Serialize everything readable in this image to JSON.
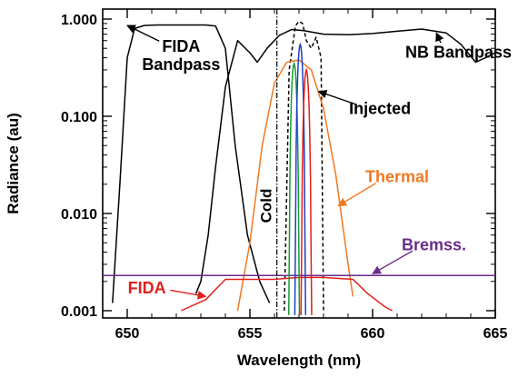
{
  "chart_data": {
    "type": "line",
    "xlabel": "Wavelength (nm)",
    "ylabel": "Radiance (au)",
    "xlim": [
      649,
      665
    ],
    "ylim": [
      0.001,
      1.0
    ],
    "yscale": "log",
    "x_ticks": [
      {
        "value": 650,
        "label": "650"
      },
      {
        "value": 655,
        "label": "655"
      },
      {
        "value": 660,
        "label": "660"
      },
      {
        "value": 665,
        "label": "665"
      }
    ],
    "y_ticks": [
      {
        "value": 0.001,
        "label": "0.001"
      },
      {
        "value": 0.01,
        "label": "0.010"
      },
      {
        "value": 0.1,
        "label": "0.100"
      },
      {
        "value": 1.0,
        "label": "1.000"
      }
    ],
    "series": [
      {
        "name": "FIDA Bandpass",
        "color": "#000000",
        "style": "solid",
        "x": [
          649.4,
          649.7,
          650.0,
          650.3,
          650.7,
          651.2,
          651.8,
          652.5,
          653.2,
          653.6,
          654.0,
          654.4,
          654.9,
          655.4,
          655.8
        ],
        "y": [
          0.0012,
          0.02,
          0.4,
          0.8,
          0.86,
          0.87,
          0.87,
          0.87,
          0.87,
          0.85,
          0.5,
          0.05,
          0.006,
          0.002,
          0.0012
        ]
      },
      {
        "name": "NB Bandpass",
        "color": "#000000",
        "style": "solid",
        "x": [
          652.8,
          653.0,
          653.3,
          653.6,
          654.0,
          654.5,
          655.0,
          655.3,
          655.7,
          656.2,
          656.7,
          657.2,
          658.0,
          659.0,
          660.0,
          661.0,
          662.0,
          663.0,
          663.6,
          664.2,
          664.6,
          665.0
        ],
        "y": [
          0.0015,
          0.002,
          0.006,
          0.03,
          0.2,
          0.6,
          0.45,
          0.36,
          0.5,
          0.68,
          0.78,
          0.76,
          0.7,
          0.69,
          0.71,
          0.75,
          0.79,
          0.72,
          0.55,
          0.36,
          0.4,
          0.45
        ]
      },
      {
        "name": "Injected",
        "color": "#000000",
        "style": "dashed",
        "x": [
          656.4,
          656.6,
          656.7,
          656.85,
          657.0,
          657.15,
          657.3,
          657.5,
          657.7,
          657.9,
          658.0
        ],
        "y": [
          0.001,
          0.3,
          0.45,
          0.85,
          0.95,
          0.9,
          0.6,
          0.5,
          0.65,
          0.4,
          0.001
        ]
      },
      {
        "name": "Thermal",
        "color": "#f07820",
        "style": "solid",
        "x": [
          654.5,
          655.0,
          655.5,
          656.0,
          656.5,
          657.0,
          657.5,
          658.0,
          658.5,
          659.0,
          659.2
        ],
        "y": [
          0.001,
          0.005,
          0.05,
          0.22,
          0.36,
          0.38,
          0.3,
          0.12,
          0.025,
          0.003,
          0.0014
        ]
      },
      {
        "name": "Bremss.",
        "color": "#6a2b8c",
        "style": "solid",
        "x": [
          649,
          665
        ],
        "y": [
          0.0023,
          0.0023
        ]
      },
      {
        "name": "FIDA",
        "color": "#e0201c",
        "style": "solid",
        "x": [
          652.2,
          653.2,
          654.0,
          655.0,
          656.0,
          657.0,
          658.0,
          659.2,
          659.8,
          660.5,
          660.8
        ],
        "y": [
          0.001,
          0.0013,
          0.0021,
          0.0021,
          0.0021,
          0.0022,
          0.0022,
          0.0021,
          0.0015,
          0.0011,
          0.001
        ]
      }
    ],
    "spectral_lines": [
      {
        "color": "#1a9a3a",
        "x": 656.8,
        "peak": 0.35
      },
      {
        "color": "#1e3fbf",
        "x": 657.05,
        "peak": 0.55
      },
      {
        "color": "#e0201c",
        "x": 657.3,
        "peak": 0.3
      }
    ],
    "cold_line": {
      "x": 656.1,
      "label": "Cold",
      "style": "dash-dot"
    },
    "annotations": [
      {
        "text": "FIDA",
        "subtext": "Bandpass",
        "color": "#000000",
        "x": 652.2,
        "y": 0.46,
        "arrow_to": [
          650.0,
          0.86
        ]
      },
      {
        "text": "NB Bandpass",
        "color": "#000000",
        "x": 663.5,
        "y": 0.4,
        "arrow_to": [
          662.6,
          0.72
        ]
      },
      {
        "text": "Injected",
        "color": "#000000",
        "x": 660.3,
        "y": 0.105,
        "arrow_to": [
          657.8,
          0.18
        ]
      },
      {
        "text": "Thermal",
        "color": "#f07820",
        "x": 661.0,
        "y": 0.021,
        "arrow_to": [
          658.6,
          0.012
        ]
      },
      {
        "text": "Bremss.",
        "color": "#6a2b8c",
        "x": 662.5,
        "y": 0.0042,
        "arrow_to": [
          660.0,
          0.0024
        ]
      },
      {
        "text": "FIDA",
        "color": "#e0201c",
        "x": 650.8,
        "y": 0.0015,
        "arrow_to": [
          653.2,
          0.0014
        ]
      }
    ]
  }
}
